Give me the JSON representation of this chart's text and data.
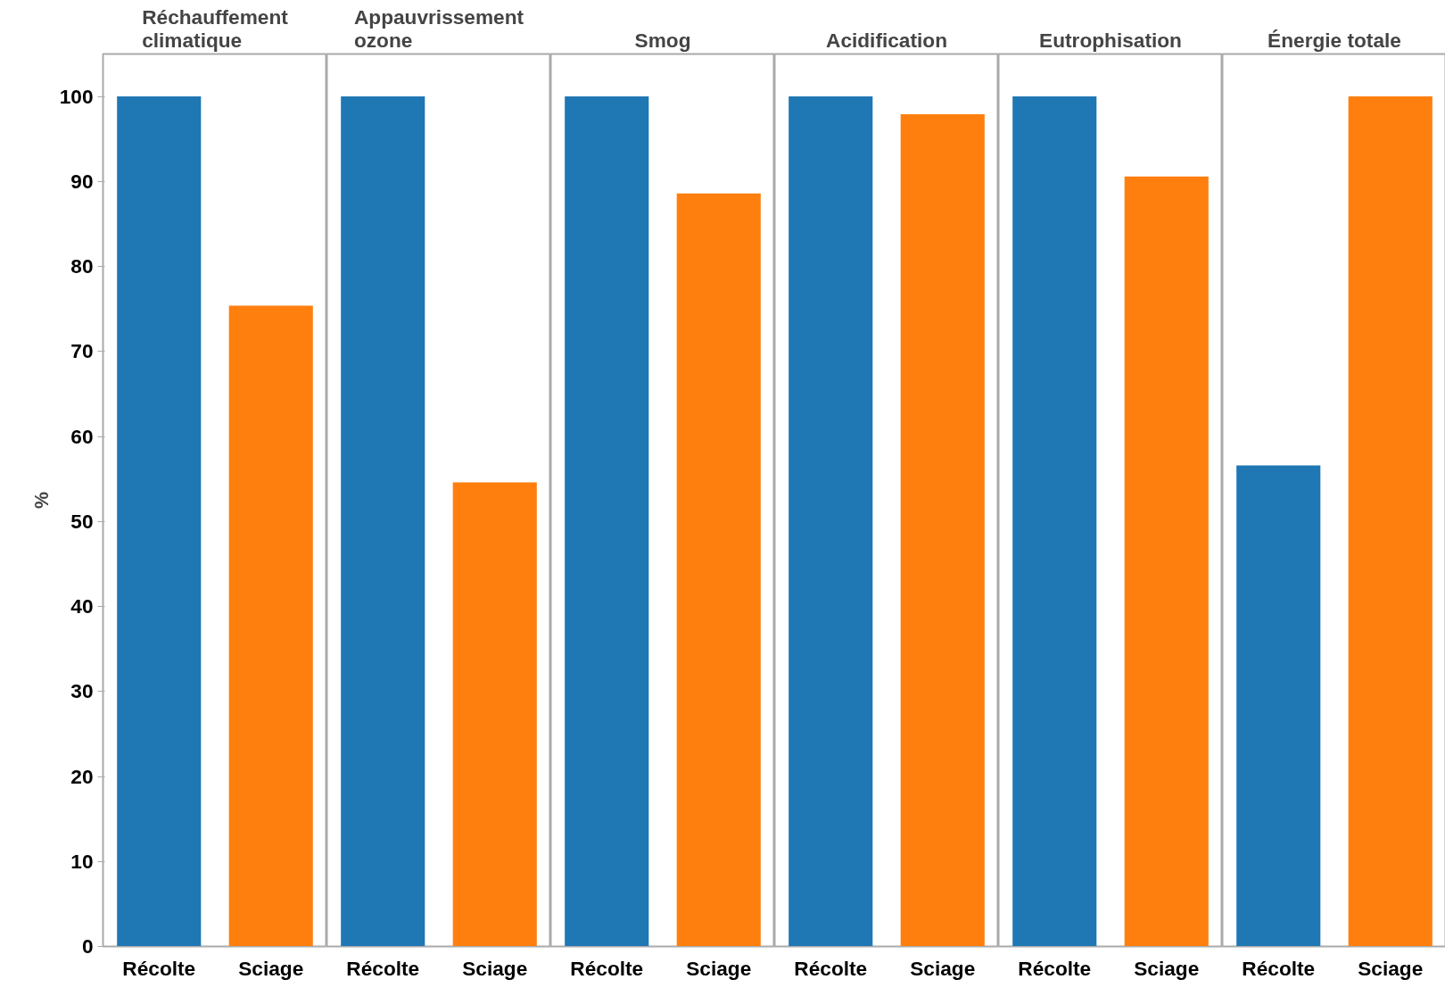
{
  "chart_data": [
    {
      "type": "bar",
      "title": "Réchauffement climatique",
      "ylabel": "%",
      "categories": [
        "Récolte",
        "Sciage"
      ],
      "values": [
        100,
        75.4
      ],
      "colors": [
        "#1f77b4",
        "#ff7f0e"
      ],
      "ylim": [
        0,
        105
      ],
      "yticks": [
        0,
        10,
        20,
        30,
        40,
        50,
        60,
        70,
        80,
        90,
        100
      ],
      "grid": false
    },
    {
      "type": "bar",
      "title": "Appauvrissement ozone",
      "categories": [
        "Récolte",
        "Sciage"
      ],
      "values": [
        100,
        54.6
      ],
      "colors": [
        "#1f77b4",
        "#ff7f0e"
      ],
      "ylim": [
        0,
        105
      ],
      "yticks": [
        0,
        10,
        20,
        30,
        40,
        50,
        60,
        70,
        80,
        90,
        100
      ],
      "tick_labels": "x",
      "grid": false
    },
    {
      "type": "bar",
      "title": "Smog",
      "categories": [
        "Récolte",
        "Sciage"
      ],
      "values": [
        100,
        88.6
      ],
      "colors": [
        "#1f77b4",
        "#ff7f0e"
      ],
      "ylim": [
        0,
        105
      ],
      "yticks": [
        0,
        10,
        20,
        30,
        40,
        50,
        60,
        70,
        80,
        90,
        100
      ],
      "tick_labels": "x",
      "grid": false
    },
    {
      "type": "bar",
      "title": "Acidification",
      "categories": [
        "Récolte",
        "Sciage"
      ],
      "values": [
        100,
        97.9
      ],
      "colors": [
        "#1f77b4",
        "#ff7f0e"
      ],
      "ylim": [
        0,
        105
      ],
      "yticks": [
        0,
        10,
        20,
        30,
        40,
        50,
        60,
        70,
        80,
        90,
        100
      ],
      "tick_labels": "x",
      "grid": false
    },
    {
      "type": "bar",
      "title": "Eutrophisation",
      "categories": [
        "Récolte",
        "Sciage"
      ],
      "values": [
        100,
        90.6
      ],
      "colors": [
        "#1f77b4",
        "#ff7f0e"
      ],
      "ylim": [
        0,
        105
      ],
      "yticks": [
        0,
        10,
        20,
        30,
        40,
        50,
        60,
        70,
        80,
        90,
        100
      ],
      "tick_labels": "x",
      "grid": false
    },
    {
      "type": "bar",
      "title": "Énergie totale",
      "categories": [
        "Récolte",
        "Sciage"
      ],
      "values": [
        56.6,
        100
      ],
      "colors": [
        "#1f77b4",
        "#ff7f0e"
      ],
      "ylim": [
        0,
        105
      ],
      "yticks": [
        0,
        10,
        20,
        30,
        40,
        50,
        60,
        70,
        80,
        90,
        100
      ],
      "tick_labels": "x",
      "grid": false
    }
  ]
}
